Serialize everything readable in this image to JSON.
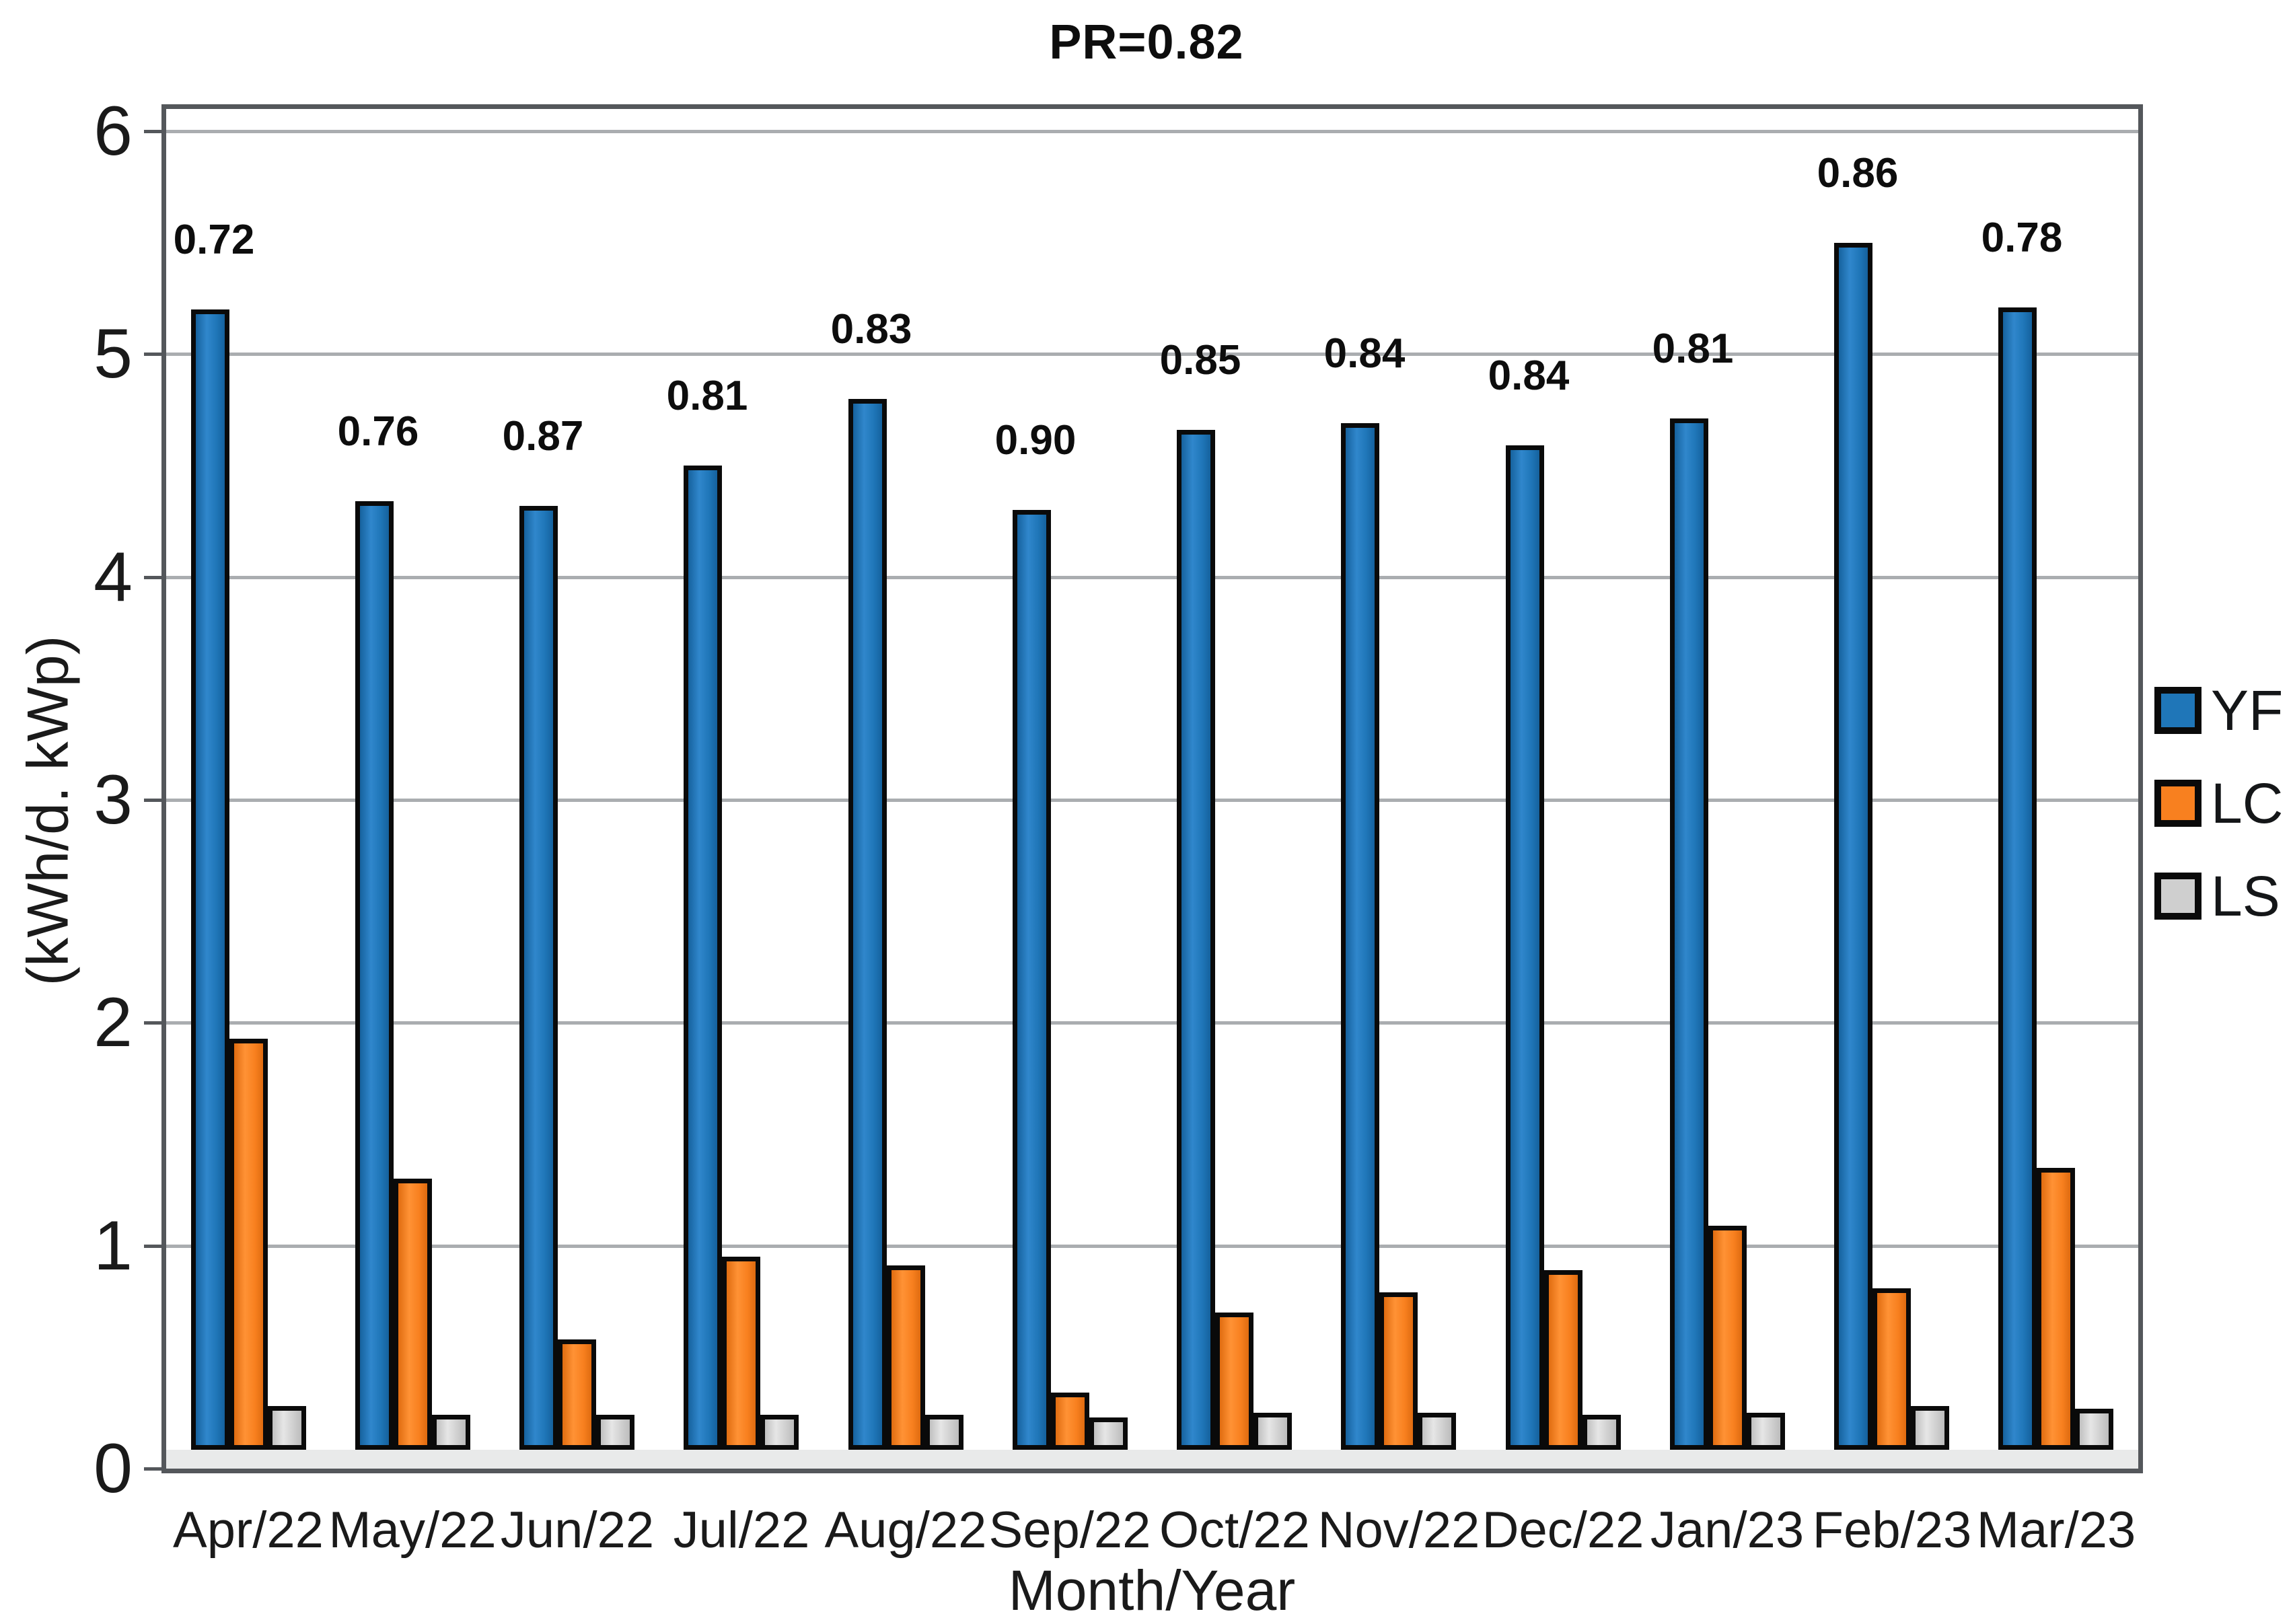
{
  "title": "PR=0.82",
  "chart_data": {
    "type": "bar",
    "title": "PR=0.82",
    "categories": [
      "Apr/22",
      "May/22",
      "Jun/22",
      "Jul/22",
      "Aug/22",
      "Sep/22",
      "Oct/22",
      "Nov/22",
      "Dec/22",
      "Jan/23",
      "Feb/23",
      "Mar/23"
    ],
    "series": [
      {
        "name": "YF",
        "color": "#1F76B8",
        "values": [
          5.2,
          4.34,
          4.32,
          4.5,
          4.8,
          4.3,
          4.66,
          4.69,
          4.59,
          4.71,
          5.5,
          5.21
        ]
      },
      {
        "name": "LC",
        "color": "#F8801F",
        "values": [
          1.93,
          1.3,
          0.58,
          0.95,
          0.91,
          0.34,
          0.7,
          0.79,
          0.89,
          1.09,
          0.81,
          1.35
        ]
      },
      {
        "name": "LS",
        "color": "#CFCFCF",
        "values": [
          0.28,
          0.24,
          0.24,
          0.24,
          0.24,
          0.23,
          0.25,
          0.25,
          0.24,
          0.25,
          0.28,
          0.27
        ]
      }
    ],
    "pr_labels": [
      "0.72",
      "0.76",
      "0.87",
      "0.81",
      "0.83",
      "0.90",
      "0.85",
      "0.84",
      "0.84",
      "0.81",
      "0.86",
      "0.78"
    ],
    "xlabel": "Month/Year",
    "ylabel": "(kWh/d. kWp)",
    "ylim": [
      0,
      6
    ],
    "yticks": [
      0,
      1,
      2,
      3,
      4,
      5,
      6
    ],
    "grid": "horizontal-major",
    "legend_position": "right-middle"
  },
  "colors": {
    "yf_blue": "#1F76B8",
    "lc_orange": "#F8801F",
    "ls_gray": "#CFCFCF",
    "bar_outline": "#0A0A0A",
    "gridline": "#AAADB0",
    "frame": "#54575B",
    "baseline_band": "#E9EAEA",
    "text": "#1A1A1A",
    "background": "#FFFFFF"
  }
}
